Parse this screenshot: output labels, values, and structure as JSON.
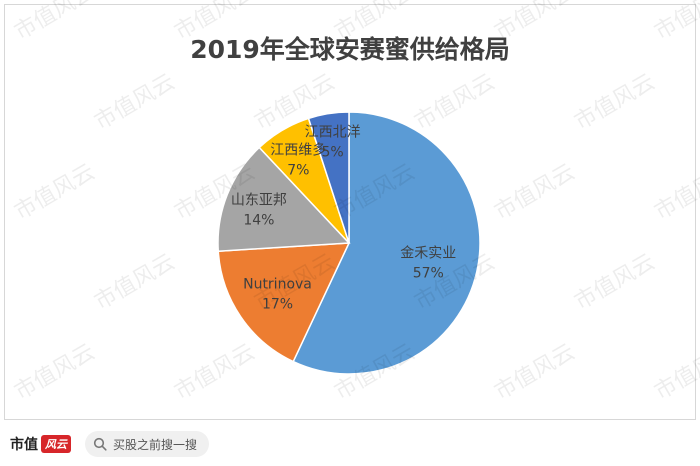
{
  "chart_data": {
    "type": "pie",
    "title": "2019年全球安赛蜜供给格局",
    "slices": [
      {
        "label": "金禾实业",
        "value": 57,
        "display": "57%",
        "color": "#5b9bd5"
      },
      {
        "label": "Nutrinova",
        "value": 17,
        "display": "17%",
        "color": "#ed7d31"
      },
      {
        "label": "山东亚邦",
        "value": 14,
        "display": "14%",
        "color": "#a5a5a5"
      },
      {
        "label": "江西维多",
        "value": 7,
        "display": "7%",
        "color": "#ffc000"
      },
      {
        "label": "江西北洋",
        "value": 5,
        "display": "5%",
        "color": "#4472c4"
      }
    ]
  },
  "watermark": {
    "text": "市值风云"
  },
  "footer": {
    "brand": "市值",
    "brand_mark": "风云",
    "search_placeholder": "买股之前搜一搜"
  }
}
